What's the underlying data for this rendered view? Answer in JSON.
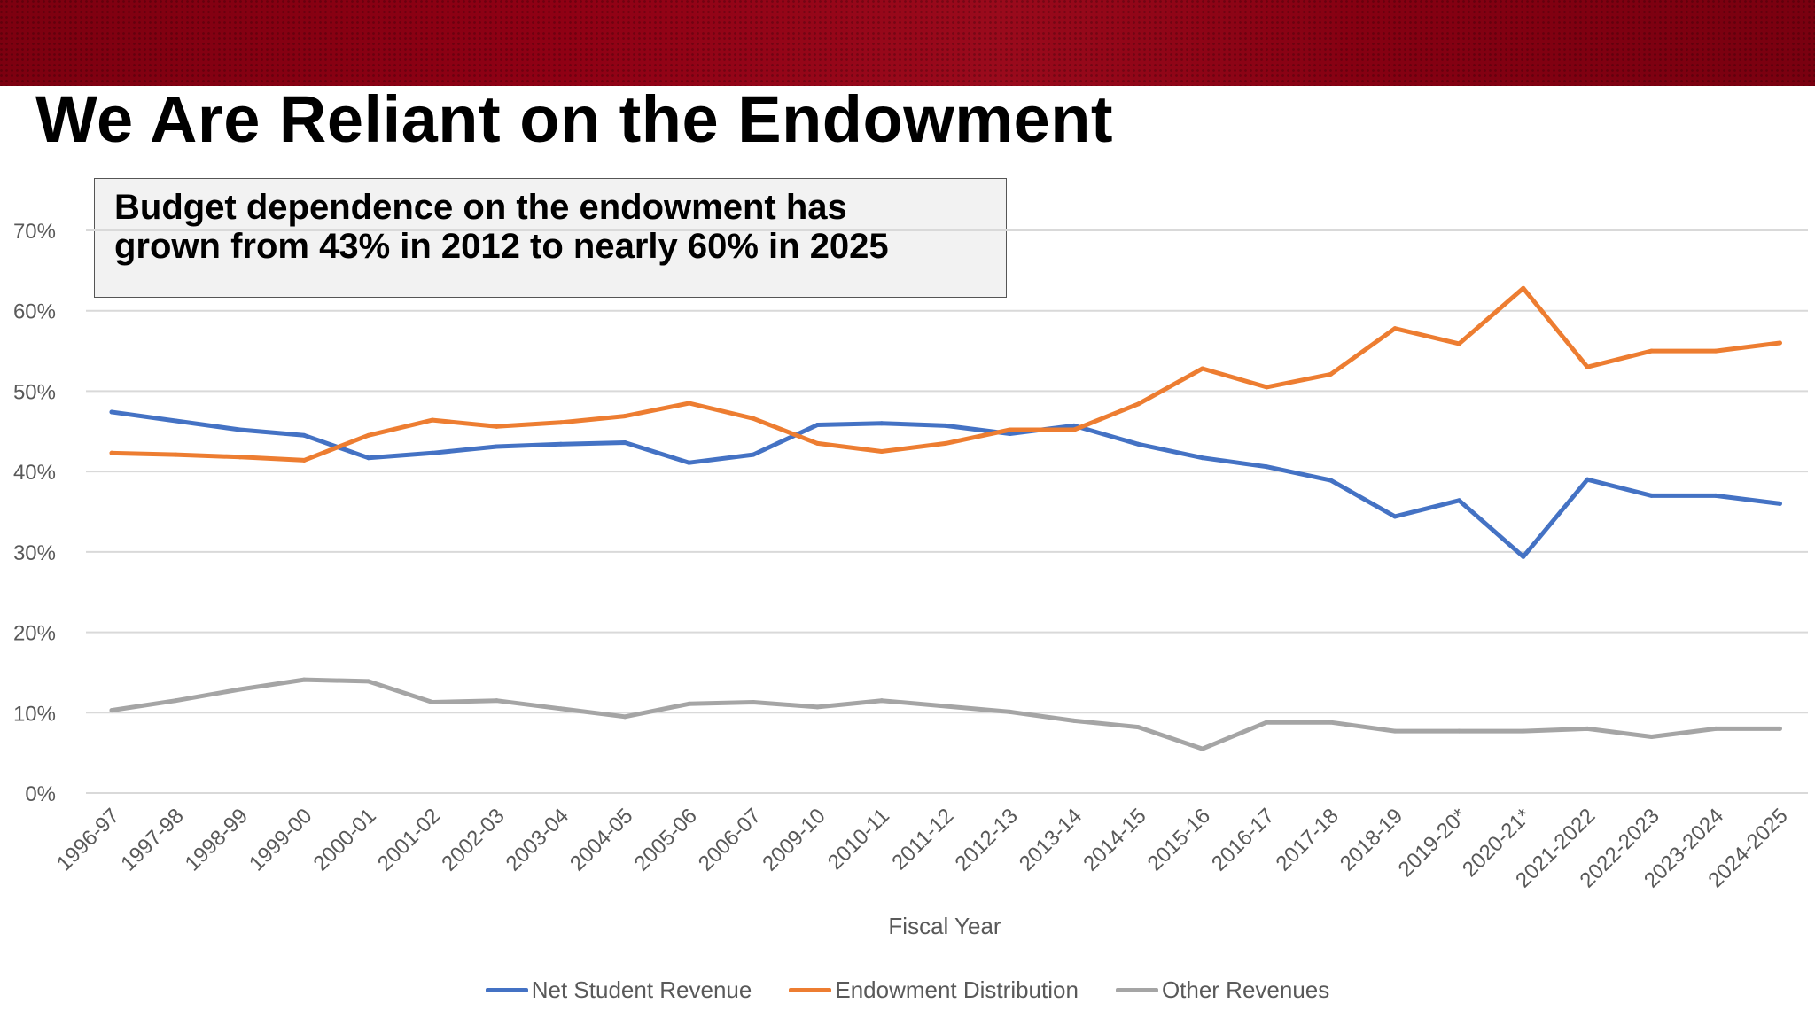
{
  "slide": {
    "title": "We Are Reliant on the Endowment",
    "callout_line1": "Budget dependence on the endowment has",
    "callout_line2": "grown from 43% in 2012 to nearly 60% in 2025"
  },
  "colors": {
    "banner": "#8f0014",
    "net_student": "#4472c4",
    "endowment": "#ed7d31",
    "other": "#a5a5a5",
    "grid": "#d9d9d9",
    "axis_text": "#595959"
  },
  "chart_data": {
    "type": "line",
    "title": "",
    "xlabel": "Fiscal Year",
    "ylabel": "",
    "ylim": [
      0,
      70
    ],
    "yticks": [
      0,
      10,
      20,
      30,
      40,
      50,
      60,
      70
    ],
    "ytick_labels": [
      "0%",
      "10%",
      "20%",
      "30%",
      "40%",
      "50%",
      "60%",
      "70%"
    ],
    "grid": true,
    "legend_position": "bottom",
    "categories": [
      "1996-97",
      "1997-98",
      "1998-99",
      "1999-00",
      "2000-01",
      "2001-02",
      "2002-03",
      "2003-04",
      "2004-05",
      "2005-06",
      "2006-07",
      "2009-10",
      "2010-11",
      "2011-12",
      "2012-13",
      "2013-14",
      "2014-15",
      "2015-16",
      "2016-17",
      "2017-18",
      "2018-19",
      "2019-20*",
      "2020-21*",
      "2021-2022",
      "2022-2023",
      "2023-2024",
      "2024-2025"
    ],
    "series": [
      {
        "name": "Net Student Revenue",
        "color": "#4472c4",
        "values": [
          47.4,
          46.3,
          45.2,
          44.5,
          41.7,
          42.3,
          43.1,
          43.4,
          43.6,
          41.1,
          42.1,
          45.8,
          46.0,
          45.7,
          44.7,
          45.7,
          43.4,
          41.7,
          40.6,
          38.9,
          34.4,
          36.4,
          29.4,
          39.0,
          37.0,
          37.0,
          36.0
        ]
      },
      {
        "name": "Endowment Distribution",
        "color": "#ed7d31",
        "values": [
          42.3,
          42.1,
          41.8,
          41.4,
          44.5,
          46.4,
          45.6,
          46.1,
          46.9,
          48.5,
          46.6,
          43.5,
          42.5,
          43.5,
          45.2,
          45.2,
          48.4,
          52.8,
          50.5,
          52.1,
          57.8,
          55.9,
          62.8,
          53.0,
          55.0,
          55.0,
          56.0
        ]
      },
      {
        "name": "Other Revenues",
        "color": "#a5a5a5",
        "values": [
          10.3,
          11.5,
          12.9,
          14.1,
          13.9,
          11.3,
          11.5,
          10.5,
          9.5,
          11.1,
          11.3,
          10.7,
          11.5,
          10.8,
          10.1,
          9.0,
          8.2,
          5.5,
          8.8,
          8.8,
          7.7,
          7.7,
          7.7,
          8.0,
          7.0,
          8.0,
          8.0
        ]
      }
    ]
  }
}
